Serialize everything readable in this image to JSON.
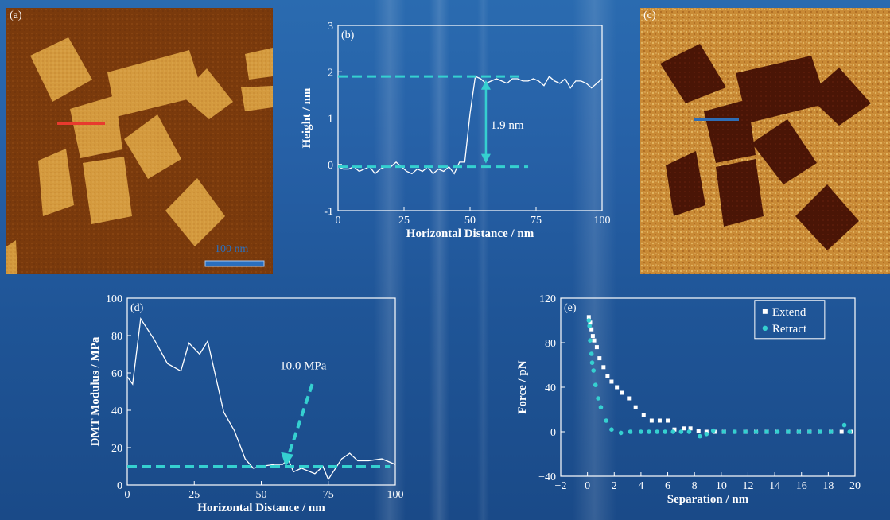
{
  "chart_data": [
    {
      "panel_label": "(a)",
      "type": "other",
      "scale_bar_text": "100 nm",
      "colors": {
        "background": "#7a3a0c",
        "feature": "#d49a3e",
        "line_marker": "#e83a2e",
        "scale_bar": "#2a6fbf"
      }
    },
    {
      "panel_label": "(b)",
      "type": "line",
      "xlabel": "Horizontal Distance / nm",
      "ylabel": "Height / nm",
      "xlim": [
        0,
        100
      ],
      "ylim": [
        -1,
        3
      ],
      "xticks": [
        "0",
        "25",
        "50",
        "75",
        "100"
      ],
      "yticks": [
        "-1",
        "0",
        "1",
        "2",
        "3"
      ],
      "series": [
        {
          "x": [
            0,
            2,
            4,
            6,
            8,
            10,
            12,
            14,
            16,
            18,
            20,
            22,
            24,
            26,
            28,
            30,
            32,
            34,
            36,
            38,
            40,
            42,
            44,
            46,
            48,
            50,
            52,
            54,
            56,
            58,
            60,
            62,
            64,
            66,
            68,
            70,
            72,
            74,
            76,
            78,
            80,
            82,
            84,
            86,
            88,
            90,
            92,
            94,
            96,
            98,
            100
          ],
          "values": [
            -0.05,
            -0.1,
            -0.1,
            -0.05,
            -0.15,
            -0.1,
            -0.05,
            -0.2,
            -0.1,
            -0.05,
            -0.05,
            0.05,
            -0.05,
            -0.15,
            -0.2,
            -0.1,
            -0.15,
            -0.05,
            -0.2,
            -0.1,
            -0.15,
            -0.05,
            -0.2,
            0.05,
            0.05,
            1.1,
            1.9,
            1.85,
            1.75,
            1.8,
            1.85,
            1.8,
            1.75,
            1.85,
            1.85,
            1.8,
            1.8,
            1.85,
            1.8,
            1.7,
            1.9,
            1.8,
            1.75,
            1.85,
            1.65,
            1.8,
            1.8,
            1.75,
            1.65,
            1.75,
            1.85
          ]
        }
      ],
      "reference_lines": [
        {
          "y": 1.9
        },
        {
          "y": -0.05
        }
      ],
      "annotations": [
        {
          "text": "1.9 nm"
        }
      ],
      "colors": {
        "line": "#ffffff",
        "reference": "#35d0d0"
      }
    },
    {
      "panel_label": "(c)",
      "type": "other",
      "colors": {
        "background": "#c98a35",
        "feature": "#4a1506",
        "line_marker": "#2f6db5"
      }
    },
    {
      "panel_label": "(d)",
      "type": "line",
      "xlabel": "Horizontal Distance / nm",
      "ylabel": "DMT Modulus / MPa",
      "xlim": [
        0,
        100
      ],
      "ylim": [
        0,
        100
      ],
      "xticks": [
        "0",
        "25",
        "50",
        "75",
        "100"
      ],
      "yticks": [
        "0",
        "20",
        "40",
        "60",
        "80",
        "100"
      ],
      "series": [
        {
          "x": [
            0,
            2,
            5,
            10,
            15,
            20,
            23,
            27,
            30,
            33,
            36,
            40,
            44,
            47,
            50,
            55,
            58,
            60,
            62,
            65,
            70,
            73,
            75,
            80,
            83,
            86,
            90,
            95,
            100
          ],
          "values": [
            58,
            54,
            89,
            78,
            65,
            61,
            76,
            70,
            77,
            58,
            39,
            29,
            14,
            9,
            10,
            11,
            11,
            14,
            7,
            9,
            6,
            10,
            3,
            14,
            17,
            13,
            13,
            14,
            11
          ]
        }
      ],
      "reference_lines": [
        {
          "y": 10.0
        }
      ],
      "annotations": [
        {
          "text": "10.0 MPa"
        }
      ],
      "colors": {
        "line": "#ffffff",
        "reference": "#35d0d0"
      }
    },
    {
      "panel_label": "(e)",
      "type": "scatter",
      "xlabel": "Separation / nm",
      "ylabel": "Force / pN",
      "xlim": [
        -2,
        20
      ],
      "ylim": [
        -40,
        120
      ],
      "xticks": [
        "−2",
        "0",
        "2",
        "4",
        "6",
        "8",
        "10",
        "12",
        "14",
        "16",
        "18",
        "20"
      ],
      "yticks": [
        "−40",
        "0",
        "40",
        "80",
        "120"
      ],
      "legend": [
        "Extend",
        "Retract"
      ],
      "legend_position": "top-right",
      "series": [
        {
          "name": "Extend",
          "x": [
            0.1,
            0.2,
            0.3,
            0.4,
            0.5,
            0.7,
            0.9,
            1.2,
            1.5,
            1.8,
            2.2,
            2.6,
            3.1,
            3.6,
            4.2,
            4.8,
            5.4,
            6.0,
            6.5,
            7.2,
            7.7,
            8.3,
            8.9,
            9.5,
            10.2,
            11,
            11.8,
            12.6,
            13.4,
            14.2,
            15,
            15.8,
            16.6,
            17.4,
            18.2,
            19,
            19.7
          ],
          "values": [
            103,
            98,
            92,
            86,
            82,
            76,
            66,
            58,
            50,
            45,
            40,
            35,
            30,
            22,
            15,
            10,
            10,
            10,
            2,
            3,
            3,
            1,
            0,
            0,
            0,
            0,
            0,
            0,
            0,
            0,
            0,
            0,
            0,
            0,
            0,
            0,
            0
          ]
        },
        {
          "name": "Retract",
          "x": [
            0.1,
            0.15,
            0.2,
            0.3,
            0.35,
            0.45,
            0.6,
            0.8,
            1.0,
            1.4,
            1.8,
            2.5,
            3.2,
            4,
            4.6,
            5.2,
            5.8,
            6.4,
            7,
            7.6,
            8.4,
            8.9,
            9.4,
            10.2,
            11,
            11.8,
            12.6,
            13.4,
            14.2,
            15,
            15.8,
            16.6,
            17.4,
            18.2,
            19.2,
            19.6
          ],
          "values": [
            100,
            95,
            82,
            70,
            62,
            55,
            42,
            30,
            22,
            10,
            2,
            -1,
            0,
            0,
            0,
            0,
            0,
            0,
            0,
            0,
            -4,
            -2,
            1,
            0,
            0,
            0,
            0,
            0,
            0,
            0,
            0,
            0,
            0,
            0,
            6,
            0
          ]
        }
      ],
      "colors": {
        "Extend": "#ffffff",
        "Retract": "#35d0d0"
      }
    }
  ]
}
